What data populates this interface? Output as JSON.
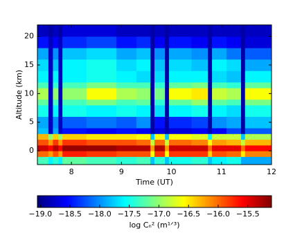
{
  "chart_data": {
    "type": "heatmap",
    "colormap": "jet",
    "xlabel": "Time (UT)",
    "ylabel": "Altitude (km)",
    "x": [
      7.32,
      7.54,
      7.63,
      7.74,
      7.82,
      8.3,
      8.9,
      9.3,
      9.58,
      9.66,
      9.87,
      9.95,
      10.4,
      10.73,
      10.81,
      11.1,
      11.39,
      11.47,
      12
    ],
    "y": [
      -2.4,
      -1,
      0,
      1,
      2,
      3,
      4,
      6,
      8,
      9,
      11,
      12,
      14,
      16,
      18,
      20,
      22
    ],
    "values": [
      [
        -17.3,
        -17.6,
        -17.4,
        -17.6,
        -17.2,
        -17.3,
        -17.4,
        -17.3,
        -17.8,
        -17.4,
        -17.8,
        -17.5,
        -17.4,
        -17.8,
        -17.6,
        -17.5,
        -17.9,
        -17.9
      ],
      [
        -16.0,
        -16.2,
        -15.9,
        -16.2,
        -15.7,
        -15.8,
        -15.9,
        -15.9,
        -16.6,
        -15.8,
        -16.6,
        -15.8,
        -15.8,
        -16.4,
        -15.9,
        -16.0,
        -16.5,
        -16.1
      ],
      [
        -15.4,
        -15.6,
        -15.3,
        -15.6,
        -15.2,
        -15.2,
        -15.3,
        -15.3,
        -16.2,
        -15.3,
        -16.2,
        -15.4,
        -15.4,
        -16.0,
        -15.5,
        -15.5,
        -16.0,
        -15.6
      ],
      [
        -15.9,
        -16.2,
        -15.8,
        -16.2,
        -15.8,
        -15.9,
        -15.9,
        -16.0,
        -16.8,
        -16.0,
        -16.8,
        -16.0,
        -16.1,
        -16.6,
        -16.2,
        -16.3,
        -16.8,
        -16.3
      ],
      [
        -16.3,
        -17.0,
        -16.4,
        -17.0,
        -16.4,
        -16.5,
        -16.5,
        -16.6,
        -17.8,
        -16.6,
        -17.8,
        -16.6,
        -16.7,
        -17.6,
        -16.8,
        -16.8,
        -17.8,
        -16.9
      ],
      [
        -17.8,
        -18.8,
        -17.9,
        -18.8,
        -18.5,
        -18.6,
        -18.5,
        -18.6,
        -18.9,
        -18.7,
        -18.9,
        -18.7,
        -18.6,
        -18.9,
        -18.6,
        -18.3,
        -18.9,
        -18.2
      ],
      [
        -17.9,
        -18.8,
        -18.0,
        -18.8,
        -18.2,
        -18.1,
        -18.2,
        -18.0,
        -18.9,
        -18.5,
        -18.9,
        -18.4,
        -18.3,
        -18.9,
        -18.0,
        -17.9,
        -18.9,
        -17.8
      ],
      [
        -17.5,
        -18.8,
        -17.6,
        -18.8,
        -17.5,
        -17.6,
        -17.5,
        -17.6,
        -18.9,
        -17.7,
        -18.9,
        -17.6,
        -17.5,
        -18.9,
        -17.6,
        -17.7,
        -18.9,
        -17.5
      ],
      [
        -17.2,
        -18.8,
        -17.3,
        -18.8,
        -17.3,
        -17.1,
        -17.3,
        -17.2,
        -18.9,
        -17.4,
        -18.9,
        -17.2,
        -17.0,
        -18.9,
        -17.2,
        -17.3,
        -18.9,
        -17.1
      ],
      [
        -16.9,
        -18.8,
        -17.0,
        -18.8,
        -17.0,
        -16.6,
        -16.9,
        -17.0,
        -18.9,
        -17.1,
        -18.9,
        -16.6,
        -16.5,
        -18.9,
        -16.8,
        -16.9,
        -18.9,
        -16.6
      ],
      [
        -17.3,
        -18.8,
        -17.4,
        -18.8,
        -17.3,
        -17.1,
        -17.3,
        -17.3,
        -18.9,
        -17.4,
        -18.9,
        -17.2,
        -17.1,
        -18.9,
        -17.3,
        -17.4,
        -18.9,
        -17.2
      ],
      [
        -17.6,
        -18.8,
        -17.6,
        -18.8,
        -17.6,
        -17.5,
        -17.6,
        -17.7,
        -18.9,
        -17.7,
        -18.9,
        -17.6,
        -17.6,
        -18.9,
        -17.7,
        -17.8,
        -18.9,
        -17.6
      ],
      [
        -17.7,
        -18.8,
        -17.8,
        -18.8,
        -17.6,
        -17.5,
        -17.7,
        -17.6,
        -18.9,
        -17.8,
        -18.9,
        -17.7,
        -17.8,
        -18.9,
        -17.6,
        -17.7,
        -18.9,
        -17.9
      ],
      [
        -17.9,
        -18.8,
        -18.0,
        -18.8,
        -17.8,
        -17.7,
        -17.9,
        -17.8,
        -18.9,
        -18.0,
        -18.9,
        -17.9,
        -18.0,
        -18.9,
        -17.9,
        -18.1,
        -18.9,
        -18.2
      ],
      [
        -18.5,
        -18.8,
        -18.6,
        -18.8,
        -18.4,
        -18.3,
        -18.5,
        -18.4,
        -18.9,
        -18.6,
        -18.9,
        -18.5,
        -18.6,
        -18.9,
        -18.5,
        -18.6,
        -18.9,
        -18.7
      ],
      [
        -18.8,
        -18.9,
        -18.8,
        -18.9,
        -18.7,
        -18.7,
        -18.8,
        -18.8,
        -18.9,
        -18.8,
        -18.9,
        -18.8,
        -18.8,
        -18.9,
        -18.8,
        -18.8,
        -18.9,
        -18.8
      ]
    ],
    "xlim": [
      7.32,
      12
    ],
    "ylim": [
      -2.4,
      22
    ],
    "xticks": [
      8,
      9,
      10,
      11,
      12
    ],
    "yticks": [
      0,
      5,
      10,
      15,
      20
    ],
    "colorbar": {
      "label": "log Cₙ²  (m¹ᐟ³)",
      "lim": [
        -19.05,
        -15.1
      ],
      "ticks": [
        {
          "value": -19,
          "label": "−19.0"
        },
        {
          "value": -18.5,
          "label": "−18.5"
        },
        {
          "value": -18,
          "label": "−18.0"
        },
        {
          "value": -17.5,
          "label": "−17.5"
        },
        {
          "value": -17,
          "label": "−17.0"
        },
        {
          "value": -16.5,
          "label": "−16.5"
        },
        {
          "value": -16,
          "label": "−16.0"
        },
        {
          "value": -15.5,
          "label": "−15.5"
        }
      ]
    }
  }
}
